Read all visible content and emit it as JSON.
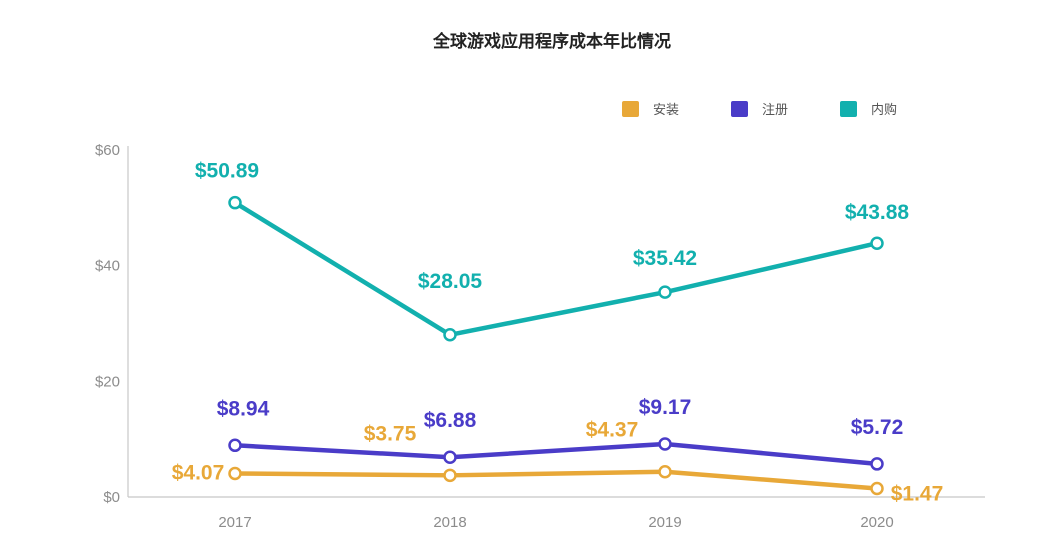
{
  "chart_data": {
    "type": "line",
    "title": "全球游戏应用程序成本年比情况",
    "xlabel": "",
    "ylabel": "",
    "x": [
      "2017",
      "2018",
      "2019",
      "2020"
    ],
    "ylim": [
      0,
      60
    ],
    "yticks": [
      0,
      20,
      40,
      60
    ],
    "ytick_labels": [
      "$0",
      "$20",
      "$40",
      "$60"
    ],
    "grid": false,
    "legend_position": "top-right",
    "series": [
      {
        "name": "安装",
        "color": "#E8A838",
        "values": [
          4.07,
          3.75,
          4.37,
          1.47
        ],
        "labels": [
          "$4.07",
          "$3.75",
          "$4.37",
          "$1.47"
        ]
      },
      {
        "name": "注册",
        "color": "#4A3CC8",
        "values": [
          8.94,
          6.88,
          9.17,
          5.72
        ],
        "labels": [
          "$8.94",
          "$6.88",
          "$9.17",
          "$5.72"
        ]
      },
      {
        "name": "内购",
        "color": "#12B0AE",
        "values": [
          50.89,
          28.05,
          35.42,
          43.88
        ],
        "labels": [
          "$50.89",
          "$28.05",
          "$35.42",
          "$43.88"
        ]
      }
    ]
  }
}
